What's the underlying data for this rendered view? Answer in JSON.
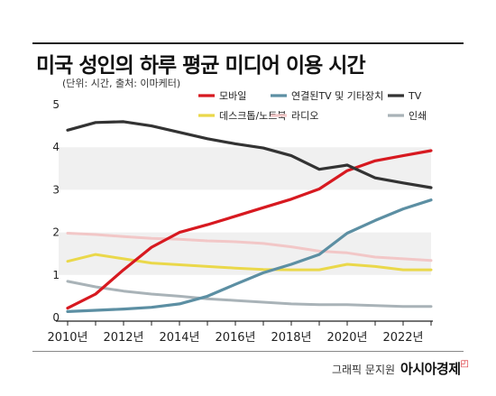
{
  "header": {
    "title": "미국 성인의 하루 평균 미디어 이용 시간",
    "source": "(단위: 시간, 출처: 이마케터)"
  },
  "footer": {
    "maker": "그래픽 문지원",
    "brand": "아시아경제",
    "mark": "◰"
  },
  "chart_data": {
    "type": "line",
    "title": "미국 성인의 하루 평균 미디어 이용 시간",
    "xlabel": "",
    "ylabel": "",
    "x": [
      2010,
      2011,
      2012,
      2013,
      2014,
      2015,
      2016,
      2017,
      2018,
      2019,
      2020,
      2021,
      2022,
      2023
    ],
    "x_tick_labels": [
      "2010년",
      "2012년",
      "2014년",
      "2016년",
      "2018년",
      "2020년",
      "2022년"
    ],
    "x_tick_values": [
      2010,
      2012,
      2014,
      2016,
      2018,
      2020,
      2022
    ],
    "y_ticks": [
      0,
      1,
      2,
      3,
      4,
      5
    ],
    "ylim": [
      0,
      5
    ],
    "grid": "horizontal bands",
    "legend_position": "top",
    "series": [
      {
        "name": "모바일",
        "color": "#d71920",
        "width": 3.2,
        "values": [
          0.22,
          0.55,
          1.12,
          1.65,
          2.0,
          2.18,
          2.38,
          2.58,
          2.78,
          3.02,
          3.45,
          3.68,
          3.8,
          3.92
        ]
      },
      {
        "name": "연결된TV 및 기타장치",
        "color": "#5c8fa3",
        "width": 3.2,
        "values": [
          0.14,
          0.17,
          0.2,
          0.24,
          0.32,
          0.5,
          0.78,
          1.05,
          1.25,
          1.48,
          1.98,
          2.28,
          2.55,
          2.76
        ]
      },
      {
        "name": "TV",
        "color": "#333333",
        "width": 3.2,
        "values": [
          4.4,
          4.58,
          4.6,
          4.5,
          4.35,
          4.2,
          4.08,
          3.98,
          3.8,
          3.48,
          3.58,
          3.28,
          3.16,
          3.05
        ]
      },
      {
        "name": "데스크톱/노트북",
        "color": "#ead84a",
        "width": 3,
        "values": [
          1.32,
          1.48,
          1.38,
          1.28,
          1.24,
          1.2,
          1.16,
          1.13,
          1.12,
          1.12,
          1.25,
          1.2,
          1.12,
          1.12
        ]
      },
      {
        "name": "라디오",
        "color": "#f2c7c7",
        "width": 3,
        "values": [
          1.98,
          1.95,
          1.9,
          1.86,
          1.84,
          1.8,
          1.78,
          1.74,
          1.66,
          1.56,
          1.52,
          1.42,
          1.38,
          1.34
        ]
      },
      {
        "name": "인쇄",
        "color": "#a9b3b8",
        "width": 3,
        "values": [
          0.85,
          0.72,
          0.62,
          0.55,
          0.5,
          0.44,
          0.4,
          0.36,
          0.32,
          0.3,
          0.3,
          0.28,
          0.26,
          0.26
        ]
      }
    ]
  }
}
